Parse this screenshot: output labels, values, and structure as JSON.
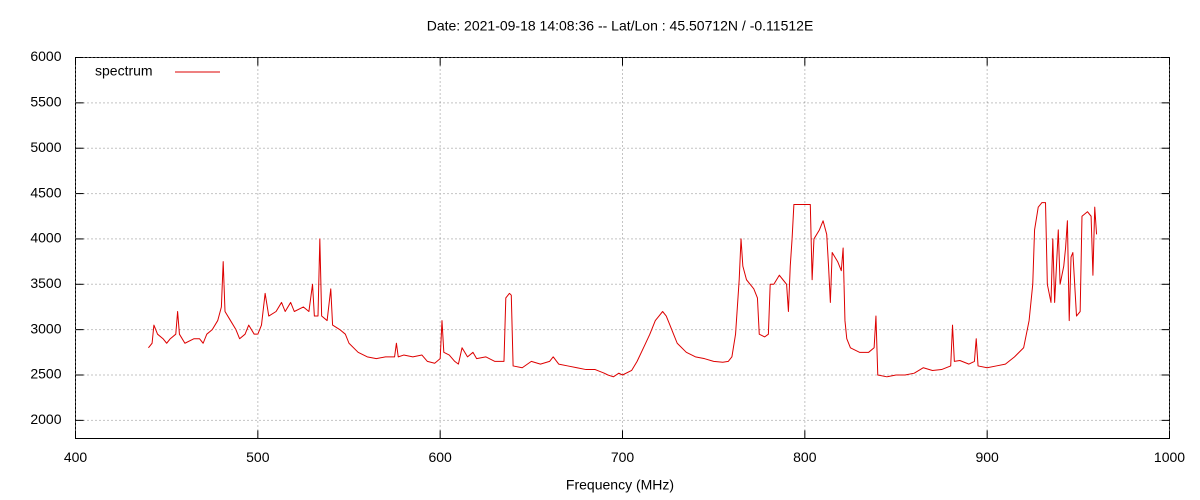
{
  "chart_data": {
    "type": "line",
    "title": "Date: 2021-09-18 14:08:36  --  Lat/Lon : 45.50712N / -0.11512E",
    "xlabel": "Frequency (MHz)",
    "xlim": [
      400,
      1000
    ],
    "xticks": [
      400,
      500,
      600,
      700,
      800,
      900,
      1000
    ],
    "ylim": [
      1800,
      6000
    ],
    "yticks": [
      2000,
      2500,
      3000,
      3500,
      4000,
      4500,
      5000,
      5500,
      6000
    ],
    "grid": true,
    "legend": "top-left",
    "x": [
      440,
      442,
      443,
      445,
      448,
      450,
      452,
      455,
      456,
      457,
      460,
      465,
      468,
      470,
      472,
      475,
      478,
      480,
      481,
      482,
      485,
      488,
      490,
      493,
      495,
      498,
      500,
      502,
      504,
      506,
      510,
      513,
      515,
      518,
      520,
      525,
      528,
      530,
      531,
      533,
      534,
      535,
      538,
      540,
      541,
      545,
      548,
      550,
      555,
      560,
      565,
      570,
      575,
      576,
      577,
      580,
      585,
      590,
      593,
      597,
      600,
      601,
      602,
      605,
      608,
      610,
      612,
      615,
      618,
      620,
      625,
      630,
      635,
      636,
      638,
      639,
      640,
      645,
      650,
      655,
      660,
      662,
      665,
      670,
      675,
      680,
      685,
      690,
      692,
      695,
      698,
      700,
      705,
      708,
      712,
      715,
      718,
      720,
      722,
      724,
      726,
      728,
      730,
      735,
      740,
      745,
      750,
      755,
      758,
      760,
      762,
      764,
      765,
      766,
      768,
      770,
      772,
      774,
      775,
      778,
      780,
      781,
      783,
      786,
      788,
      790,
      791,
      792,
      793,
      794,
      800,
      803,
      804,
      805,
      808,
      810,
      812,
      813,
      814,
      815,
      818,
      820,
      821,
      822,
      823,
      825,
      830,
      835,
      838,
      839,
      840,
      845,
      850,
      855,
      860,
      865,
      870,
      875,
      880,
      881,
      882,
      885,
      890,
      893,
      894,
      895,
      900,
      905,
      910,
      915,
      920,
      923,
      925,
      926,
      928,
      930,
      932,
      933,
      935,
      936,
      937,
      939,
      940,
      942,
      943,
      944,
      945,
      946,
      947,
      949,
      951,
      952,
      955,
      957,
      958,
      959,
      960
    ],
    "series": [
      {
        "name": "spectrum",
        "color": "#dd0000",
        "values": [
          2800,
          2850,
          3050,
          2950,
          2900,
          2850,
          2900,
          2950,
          3200,
          2950,
          2850,
          2900,
          2900,
          2850,
          2950,
          3000,
          3100,
          3250,
          3750,
          3200,
          3100,
          3000,
          2900,
          2950,
          3050,
          2950,
          2950,
          3050,
          3400,
          3150,
          3200,
          3300,
          3200,
          3300,
          3200,
          3250,
          3200,
          3500,
          3150,
          3150,
          4000,
          3150,
          3100,
          3450,
          3050,
          3000,
          2950,
          2850,
          2750,
          2700,
          2680,
          2700,
          2700,
          2850,
          2700,
          2720,
          2700,
          2720,
          2650,
          2630,
          2680,
          3100,
          2750,
          2720,
          2650,
          2620,
          2800,
          2700,
          2750,
          2680,
          2700,
          2650,
          2650,
          3350,
          3400,
          3380,
          2600,
          2580,
          2650,
          2620,
          2650,
          2700,
          2620,
          2600,
          2580,
          2560,
          2560,
          2520,
          2500,
          2480,
          2520,
          2500,
          2550,
          2650,
          2820,
          2950,
          3100,
          3150,
          3200,
          3150,
          3050,
          2950,
          2850,
          2750,
          2700,
          2680,
          2650,
          2640,
          2650,
          2700,
          2950,
          3550,
          4000,
          3700,
          3550,
          3500,
          3450,
          3350,
          2950,
          2920,
          2950,
          3500,
          3500,
          3600,
          3550,
          3500,
          3200,
          3700,
          4000,
          4380,
          4380,
          4380,
          3550,
          4000,
          4100,
          4200,
          4050,
          3700,
          3300,
          3850,
          3750,
          3650,
          3900,
          3100,
          2900,
          2800,
          2750,
          2750,
          2800,
          3150,
          2500,
          2480,
          2500,
          2500,
          2520,
          2580,
          2550,
          2560,
          2600,
          3050,
          2650,
          2660,
          2620,
          2650,
          2900,
          2600,
          2580,
          2600,
          2620,
          2700,
          2800,
          3100,
          3500,
          4100,
          4350,
          4400,
          4400,
          3500,
          3300,
          4000,
          3300,
          4100,
          3500,
          3700,
          3900,
          4200,
          3100,
          3800,
          3850,
          3150,
          3200,
          4250,
          4300,
          4250,
          3600,
          4350,
          4050
        ]
      }
    ]
  }
}
